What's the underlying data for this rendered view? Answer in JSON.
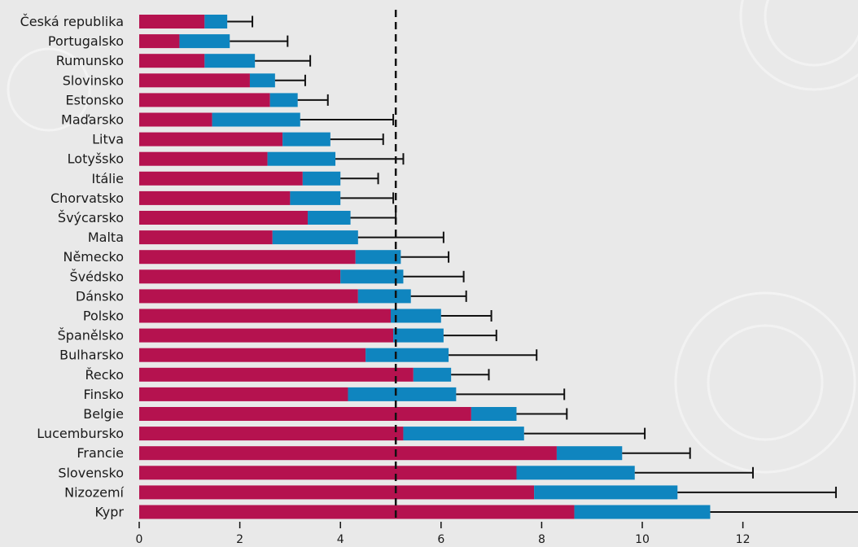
{
  "chart_data": {
    "type": "bar",
    "orientation": "horizontal",
    "stacked": true,
    "categories": [
      "Česká republika",
      "Portugalsko",
      "Rumunsko",
      "Slovinsko",
      "Estonsko",
      "Maďarsko",
      "Litva",
      "Lotyšsko",
      "Itálie",
      "Chorvatsko",
      "Švýcarsko",
      "Malta",
      "Německo",
      "Švédsko",
      "Dánsko",
      "Polsko",
      "Španělsko",
      "Bulharsko",
      "Řecko",
      "Finsko",
      "Belgie",
      "Lucembursko",
      "Francie",
      "Slovensko",
      "Nizozemí",
      "Kypr"
    ],
    "series": [
      {
        "color": "#b5124f",
        "values": [
          1.3,
          0.8,
          1.3,
          2.2,
          2.6,
          1.45,
          2.85,
          2.55,
          3.25,
          3.0,
          3.35,
          2.65,
          4.3,
          4.0,
          4.35,
          5.0,
          5.05,
          4.5,
          5.45,
          4.15,
          6.6,
          5.25,
          8.3,
          7.5,
          7.85,
          8.65
        ]
      },
      {
        "color": "#0f85bf",
        "values": [
          0.45,
          1.0,
          1.0,
          0.5,
          0.55,
          1.75,
          0.95,
          1.35,
          0.75,
          1.0,
          0.85,
          1.7,
          0.9,
          1.25,
          1.05,
          1.0,
          1.0,
          1.65,
          0.75,
          2.15,
          0.9,
          2.4,
          1.3,
          2.35,
          2.85,
          2.7
        ]
      }
    ],
    "error_upper": [
      2.25,
      2.95,
      3.4,
      3.3,
      3.75,
      5.05,
      4.85,
      5.25,
      4.75,
      5.05,
      5.1,
      6.05,
      6.15,
      6.45,
      6.5,
      7.0,
      7.1,
      7.9,
      6.95,
      8.45,
      8.5,
      10.05,
      10.95,
      12.2,
      13.85,
      14.8
    ],
    "reference_line": 5.1,
    "xlim": [
      0,
      14
    ],
    "xticks": [
      0,
      2,
      4,
      6,
      8,
      10,
      12
    ],
    "title": "",
    "xlabel": "",
    "ylabel": "",
    "grid": false,
    "legend": "none"
  }
}
